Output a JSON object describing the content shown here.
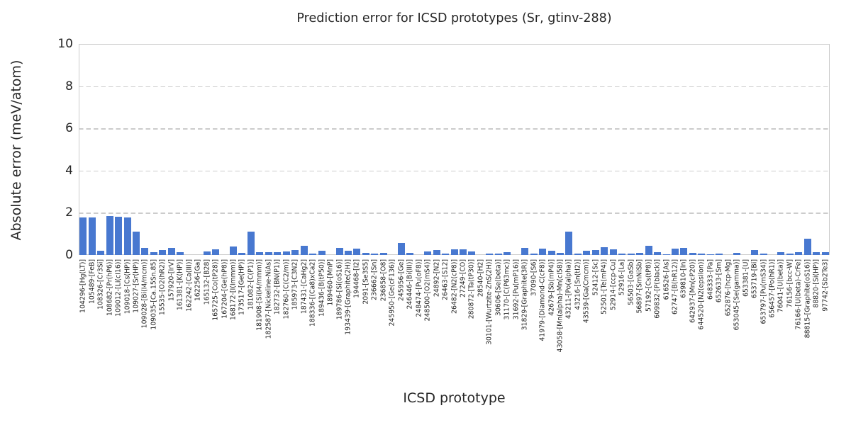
{
  "chart_data": {
    "type": "bar",
    "title": "Prediction error for ICSD prototypes (Sr, gtinv-288)",
    "xlabel": "ICSD prototype",
    "ylabel": "Absolute error (meV/atom)",
    "ylim": [
      0,
      10
    ],
    "yticks": [
      0,
      2,
      4,
      6,
      8,
      10
    ],
    "grid": "horizontal-dashed",
    "legend": "none",
    "bar_color": "#4878d0",
    "grid_color": "#cccccc",
    "axis_color": "#cccccc",
    "text_color": "#262626",
    "categories": [
      "104296-[Hg(LT)]",
      "105489-[FeB]",
      "108326-[Cr3Si]",
      "108682-[Pr(hP6)]",
      "109012-[Li(cI16)]",
      "109018-[Cs(HP)]",
      "109027-[Sr(HP)]",
      "109028-[Bi(I4/mcm)]",
      "109035-[Ca.15Sn.85]",
      "15535-[O2(hR2)]",
      "157920-[IrV]",
      "161381-[K(HP)]",
      "162242-[Ca(III)]",
      "162256-[Ga]",
      "165132-[B28]",
      "165725-[Co(tP28)]",
      "167204-[Ge(hP8)]",
      "168172-[I(Immm)]",
      "173517-[Ge(HP)]",
      "181082-[C(P1)]",
      "181908-[Si(I4/mmm)]",
      "182587-[Nickeline-NiAs]",
      "182732-[BN(P1)]",
      "182760-[C(C2/m)]",
      "185973-[C3N2]",
      "187431-[CaHg2]",
      "188336-[(Ca8)xCa2]",
      "189436-[B(tP50)]",
      "189460-[MnP]",
      "189786-[Si(oS16)]",
      "193439-[Graphite(2H)]",
      "194468-[I2]",
      "2091-[Se3S5]",
      "236662-[Sn]",
      "236858-[O8]",
      "245950-[Ge(cF136)]",
      "245956-[Ge]",
      "246446-[Bi(III)]",
      "248474-[Pu(oF8)]",
      "248500-[O2(mS4)]",
      "24892-[N2]",
      "26463-[S12]",
      "26482-[N2(cP8)]",
      "27249-[CO]",
      "280872-[Ta(tP30)]",
      "28540-[H2]",
      "30101-[Wurtzite-ZnS(2H)]",
      "30606-[Se(beta)]",
      "31170-[C(P63mc)]",
      "31692-[Pu(mP16)]",
      "31829-[Graphite(3R)]",
      "37090-[S6]",
      "41979-[Diamond-C(cF8)]",
      "42679-[Sb(mP4)]",
      "43058-[Mn(alpha)-Mn(cI58)]",
      "43211-[Po(alpha)]",
      "43216-[Sn(tI2)]",
      "43539-[Ga(Cmcm)]",
      "52412-[Sc]",
      "52501-[Te(mP4)]",
      "52914-[ccp-Cu]",
      "52916-[La]",
      "56503-[GaSb]",
      "56897-[SmNiSb]",
      "57192-[Cs(tP8)]",
      "609832-[P(black)]",
      "616526-[As]",
      "62747-[B(hR12)]",
      "639810-[In]",
      "642937-[Mn(cP20)]",
      "644520-[N2(epsilon)]",
      "648333-[Pa]",
      "652633-[Sm]",
      "652876-[hcp-Mg]",
      "653045-[Se(gamma)]",
      "653381-[U]",
      "653719-[Bi]",
      "653797-[Pu(mS34)]",
      "656457-[Po(hR1)]",
      "76041-[U(beta)]",
      "76156-[bcc-W]",
      "76166-[U(beta)-CrFe]",
      "88815-[Graphite(oS16)]",
      "88820-[Si(HP)]",
      "97742-[Sb2Te3]"
    ],
    "values": [
      1.78,
      1.78,
      0.2,
      1.84,
      1.8,
      1.78,
      1.1,
      0.32,
      0.15,
      0.25,
      0.35,
      0.15,
      0,
      0,
      0.17,
      0.28,
      0,
      0.4,
      0.11,
      1.1,
      0.12,
      0.12,
      0.15,
      0.16,
      0.25,
      0.45,
      0.07,
      0.2,
      0,
      0.34,
      0.21,
      0.31,
      0.1,
      0.08,
      0.1,
      0,
      0.58,
      0.1,
      0,
      0.16,
      0.25,
      0.06,
      0.28,
      0.26,
      0.16,
      0,
      0.08,
      0.08,
      0.12,
      0,
      0.35,
      0.07,
      0.3,
      0.2,
      0.1,
      1.1,
      0.06,
      0.2,
      0.25,
      0.36,
      0.26,
      0.08,
      0.06,
      0.1,
      0.45,
      0.15,
      0.05,
      0.3,
      0.35,
      0.1,
      0.08,
      0.05,
      0.08,
      0,
      0.1,
      0,
      0.25,
      0.08,
      0,
      0.12,
      0.08,
      0.15,
      0.78,
      0.12,
      0.12
    ]
  }
}
